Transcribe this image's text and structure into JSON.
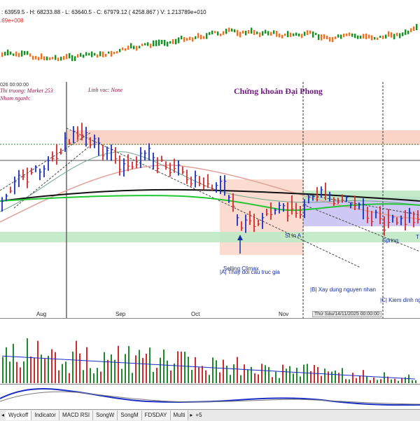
{
  "price_header": {
    "ohlc_text": ": 63959.5 - H: 68233.88 - L: 63640.5 - C: 67979.12 ( 4258.867 ) V: 1.213789e+010",
    "sub_text": ".69e+008"
  },
  "chart_info": {
    "date_label": "026 00:00:00",
    "market_label": "Thi truong: Market 253",
    "sector_label": "Linh vuc: None",
    "industry_label": "Nhom nganh:",
    "title": "Chứng khoán Đại Phong"
  },
  "annotations": {
    "selling_climax": "Selling Climax",
    "st_in_a": "St in A",
    "spring": "Spring",
    "phase_a": "|A| Thay doi cau truc gia",
    "phase_b": "|B| Xay dung nguyen nhan",
    "phase_c": "|C| Kiem dinh ng",
    "right_t": "T"
  },
  "x_axis": {
    "months": [
      "Aug",
      "Sep",
      "Oct",
      "Nov"
    ],
    "crosshair_date": "Thứ Sáu/14/11/2025 00:00:00"
  },
  "tabs": [
    "Wyckoff",
    "Indicator",
    "MACD RSI",
    "SongW",
    "SongM",
    "FDSDAY",
    "Multi"
  ],
  "nav": {
    "prev": "◂",
    "next": "▸",
    "extra": "+5"
  },
  "colors": {
    "up": "#1f8a2b",
    "down": "#d62a2a",
    "macd_line": "#1b2fc4",
    "ma_black": "#111111",
    "ma_green": "#22c833",
    "ma_pink": "#e0a39a",
    "ma_teal": "#6fa58a",
    "supply_zone": "#f7c4b4",
    "demand_zone": "#bde8c3",
    "range_box": "#b9b3f1",
    "title_color": "#6d1b7b",
    "label_blue": "#1a2f9e"
  },
  "chart_data": {
    "type": "candlestick",
    "x_axis_labels": [
      "Aug",
      "Sep",
      "Oct",
      "Nov"
    ],
    "main_panel_series": [
      "price bars (green = up, red = down)",
      "moving averages: black, green, pink, teal"
    ],
    "overview_series": "closing price strip (green/red)",
    "volume_series": "volume bars (green/red) with blue average line",
    "macd_series": "macd line"
  }
}
